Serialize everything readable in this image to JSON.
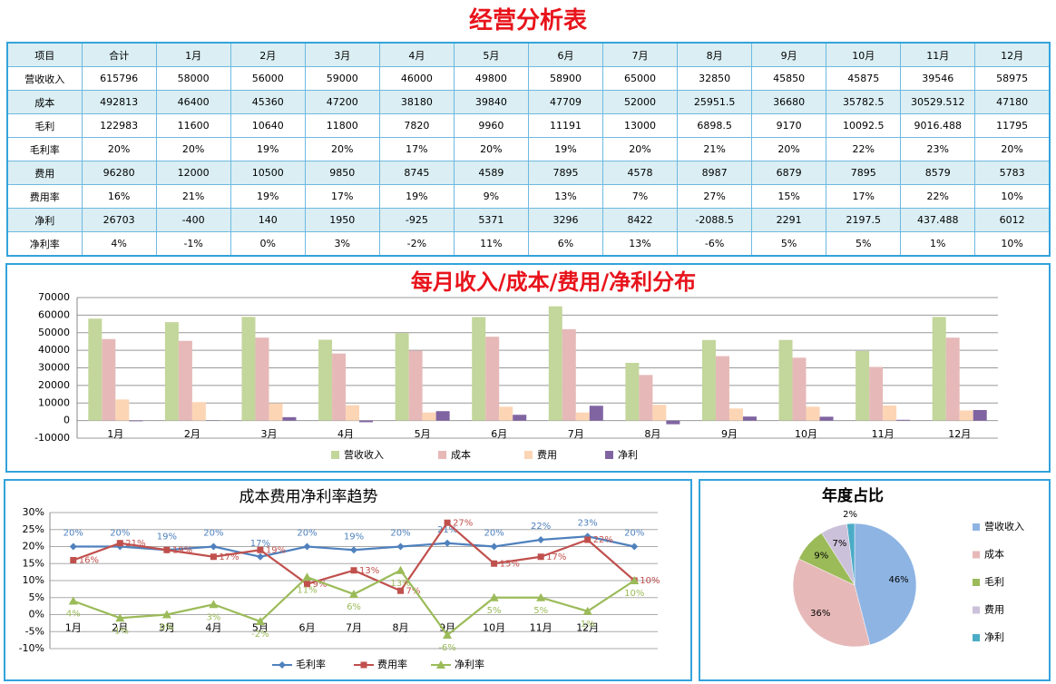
{
  "header": {
    "title": "经营分析表"
  },
  "table": {
    "header": [
      "项目",
      "合计",
      "1月",
      "2月",
      "3月",
      "4月",
      "5月",
      "6月",
      "7月",
      "8月",
      "9月",
      "10月",
      "11月",
      "12月"
    ],
    "rows": [
      [
        "营收收入",
        "615796",
        "58000",
        "56000",
        "59000",
        "46000",
        "49800",
        "58900",
        "65000",
        "32850",
        "45850",
        "45875",
        "39546",
        "58975"
      ],
      [
        "成本",
        "492813",
        "46400",
        "45360",
        "47200",
        "38180",
        "39840",
        "47709",
        "52000",
        "25951.5",
        "36680",
        "35782.5",
        "30529.512",
        "47180"
      ],
      [
        "毛利",
        "122983",
        "11600",
        "10640",
        "11800",
        "7820",
        "9960",
        "11191",
        "13000",
        "6898.5",
        "9170",
        "10092.5",
        "9016.488",
        "11795"
      ],
      [
        "毛利率",
        "20%",
        "20%",
        "19%",
        "20%",
        "17%",
        "20%",
        "19%",
        "20%",
        "21%",
        "20%",
        "22%",
        "23%",
        "20%"
      ],
      [
        "费用",
        "96280",
        "12000",
        "10500",
        "9850",
        "8745",
        "4589",
        "7895",
        "4578",
        "8987",
        "6879",
        "7895",
        "8579",
        "5783"
      ],
      [
        "费用率",
        "16%",
        "21%",
        "19%",
        "17%",
        "19%",
        "9%",
        "13%",
        "7%",
        "27%",
        "15%",
        "17%",
        "22%",
        "10%"
      ],
      [
        "净利",
        "26703",
        "-400",
        "140",
        "1950",
        "-925",
        "5371",
        "3296",
        "8422",
        "-2088.5",
        "2291",
        "2197.5",
        "437.488",
        "6012"
      ],
      [
        "净利率",
        "4%",
        "-1%",
        "0%",
        "3%",
        "-2%",
        "11%",
        "6%",
        "13%",
        "-6%",
        "5%",
        "5%",
        "1%",
        "10%"
      ]
    ]
  },
  "chart_data": [
    {
      "type": "bar",
      "title": "每月收入/成本/费用/净利分布",
      "categories": [
        "1月",
        "2月",
        "3月",
        "4月",
        "5月",
        "6月",
        "7月",
        "8月",
        "9月",
        "10月",
        "11月",
        "12月"
      ],
      "series": [
        {
          "name": "营收收入",
          "color": "#C3D69B",
          "values": [
            58000,
            56000,
            59000,
            46000,
            49800,
            58900,
            65000,
            32850,
            45850,
            45875,
            39546,
            58975
          ]
        },
        {
          "name": "成本",
          "color": "#E6B9B8",
          "values": [
            46400,
            45360,
            47200,
            38180,
            39840,
            47709,
            52000,
            25951.5,
            36680,
            35782.5,
            30529.512,
            47180
          ]
        },
        {
          "name": "费用",
          "color": "#FCD5B5",
          "values": [
            12000,
            10500,
            9850,
            8745,
            4589,
            7895,
            4578,
            8987,
            6879,
            7895,
            8579,
            5783
          ]
        },
        {
          "name": "净利",
          "color": "#8064A2",
          "values": [
            -400,
            140,
            1950,
            -925,
            5371,
            3296,
            8422,
            -2088.5,
            2291,
            2197.5,
            437.488,
            6012
          ]
        }
      ],
      "ylim": [
        -10000,
        70000
      ],
      "yticks": [
        -10000,
        0,
        10000,
        20000,
        30000,
        40000,
        50000,
        60000,
        70000
      ],
      "grid": true,
      "legend": "bottom"
    },
    {
      "type": "line",
      "title": "成本费用净利率趋势",
      "categories": [
        "1月",
        "2月",
        "3月",
        "4月",
        "5月",
        "6月",
        "7月",
        "8月",
        "9月",
        "10月",
        "11月",
        "12月",
        null
      ],
      "series": [
        {
          "name": "毛利率",
          "color": "#4F81BD",
          "marker": "diamond",
          "values": [
            20,
            20,
            19,
            20,
            17,
            20,
            19,
            20,
            21,
            20,
            22,
            23,
            20
          ],
          "value_labels": [
            "20%",
            "20%",
            "19%",
            "20%",
            "17%",
            "20%",
            "19%",
            "20%",
            "21%",
            "20%",
            "22%",
            "23%",
            "20%"
          ]
        },
        {
          "name": "费用率",
          "color": "#C0504D",
          "marker": "square",
          "values": [
            16,
            21,
            19,
            17,
            19,
            9,
            13,
            7,
            27,
            15,
            17,
            22,
            10
          ],
          "value_labels": [
            "16%",
            "21%",
            "19%",
            "17%",
            "19%",
            "9%",
            "13%",
            "7%",
            "27%",
            "15%",
            "17%",
            "22%",
            "10%"
          ]
        },
        {
          "name": "净利率",
          "color": "#9BBB59",
          "marker": "triangle",
          "values": [
            4,
            -1,
            0,
            3,
            -2,
            11,
            6,
            13,
            -6,
            5,
            5,
            1,
            10
          ],
          "value_labels": [
            "4%",
            "-1%",
            "0%",
            "3%",
            "-2%",
            "11%",
            "6%",
            "13%",
            "-6%",
            "5%",
            "5%",
            "1%",
            "10%"
          ]
        }
      ],
      "ylim": [
        -10,
        30
      ],
      "yticks": [
        {
          "value": -10,
          "label": "-10%"
        },
        {
          "value": -5,
          "label": "-5%"
        },
        {
          "value": 0,
          "label": "0%"
        },
        {
          "value": 5,
          "label": "5%"
        },
        {
          "value": 10,
          "label": "10%"
        },
        {
          "value": 15,
          "label": "15%"
        },
        {
          "value": 20,
          "label": "20%"
        },
        {
          "value": 25,
          "label": "25%"
        },
        {
          "value": 30,
          "label": "30%"
        }
      ],
      "grid": true,
      "legend": "bottom"
    },
    {
      "type": "pie",
      "title": "年度占比",
      "categories": [
        "营收收入",
        "成本",
        "毛利",
        "费用",
        "净利"
      ],
      "values": [
        46,
        36,
        9,
        7,
        2
      ],
      "value_labels": [
        "46%",
        "36%",
        "9%",
        "7%",
        "2%"
      ],
      "colors": [
        "#8EB4E3",
        "#E6B9B8",
        "#9BBB59",
        "#CCC1DA",
        "#4BACC6"
      ],
      "legend": "right"
    }
  ]
}
